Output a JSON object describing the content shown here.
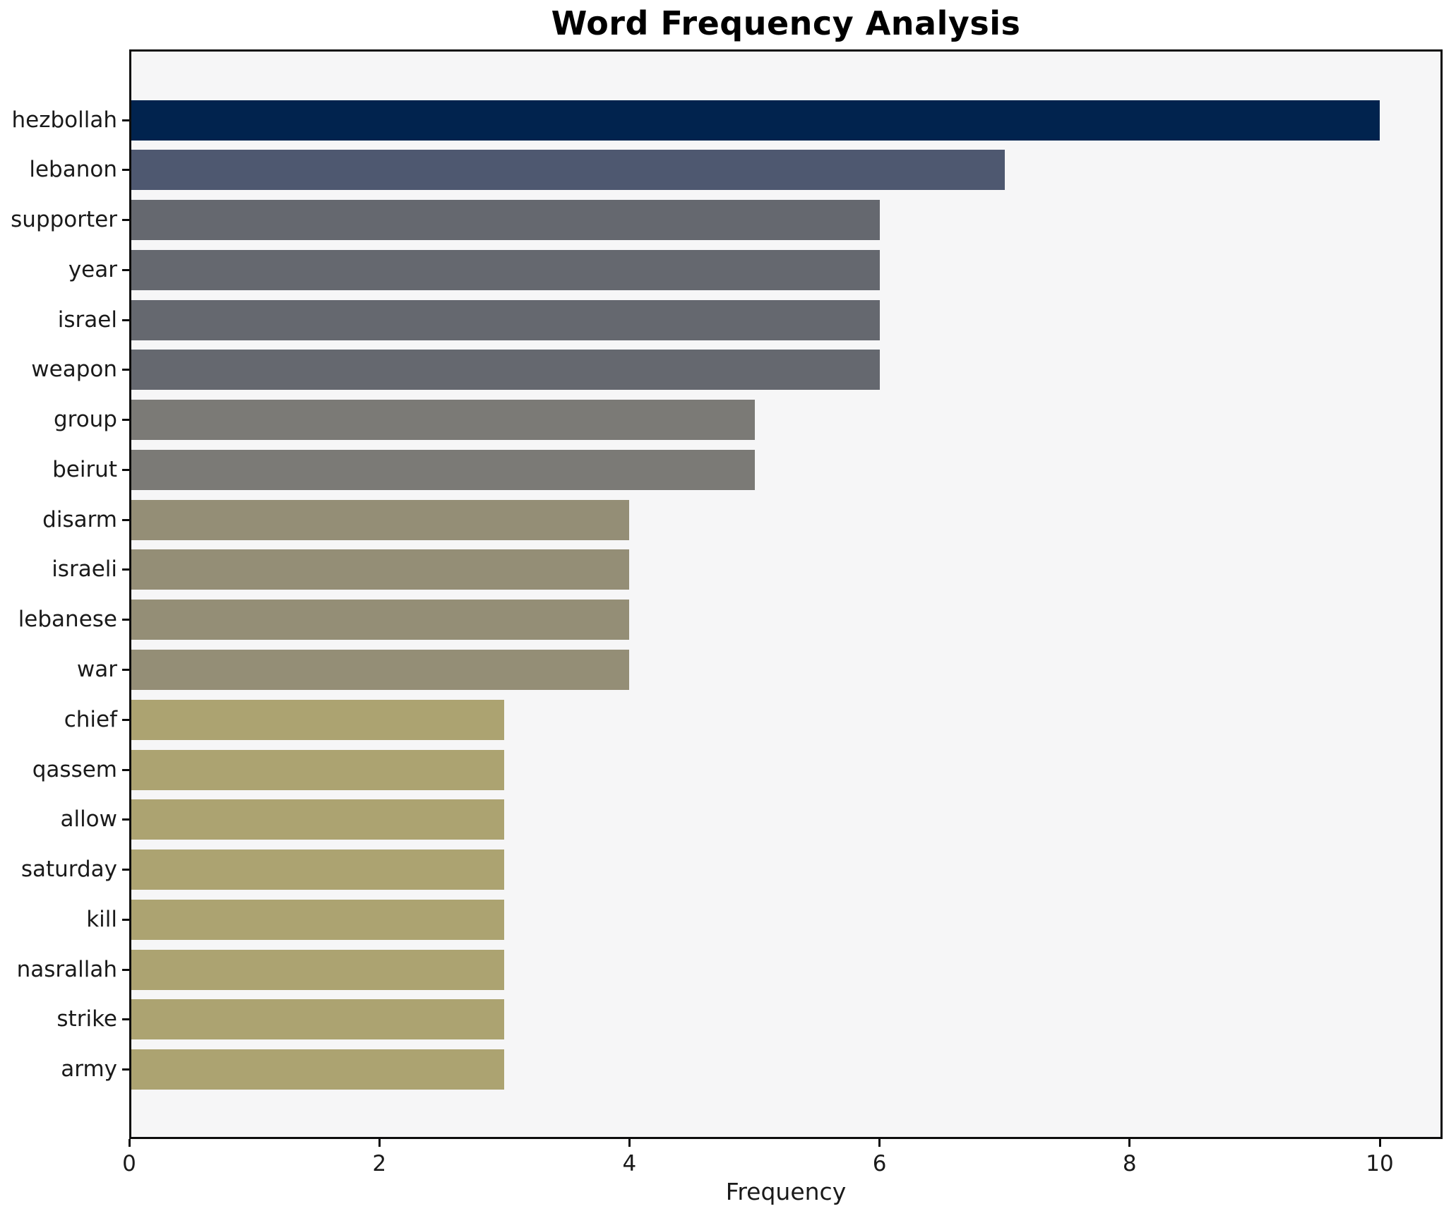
{
  "chart_data": {
    "type": "bar",
    "orientation": "horizontal",
    "title": "Word Frequency Analysis",
    "xlabel": "Frequency",
    "ylabel": "",
    "categories": [
      "hezbollah",
      "lebanon",
      "supporter",
      "year",
      "israel",
      "weapon",
      "group",
      "beirut",
      "disarm",
      "israeli",
      "lebanese",
      "war",
      "chief",
      "qassem",
      "allow",
      "saturday",
      "kill",
      "nasrallah",
      "strike",
      "army"
    ],
    "values": [
      10,
      7,
      6,
      6,
      6,
      6,
      5,
      5,
      4,
      4,
      4,
      4,
      3,
      3,
      3,
      3,
      3,
      3,
      3,
      3
    ],
    "bar_colors": [
      "#01234e",
      "#4e5870",
      "#65686f",
      "#65686f",
      "#65686f",
      "#65686f",
      "#7b7a76",
      "#7b7a76",
      "#948e76",
      "#948e76",
      "#948e76",
      "#948e76",
      "#aca371",
      "#aca371",
      "#aca371",
      "#aca371",
      "#aca371",
      "#aca371",
      "#aca371",
      "#aca371"
    ],
    "xlim": [
      0,
      10.5
    ],
    "xticks": [
      0,
      2,
      4,
      6,
      8,
      10
    ],
    "grid": false,
    "legend": "none",
    "plot_background": "#f6f6f7",
    "figure_background": "#ffffff",
    "spine_color": "#0d0d0d",
    "text_color": "#1a1a1a"
  }
}
